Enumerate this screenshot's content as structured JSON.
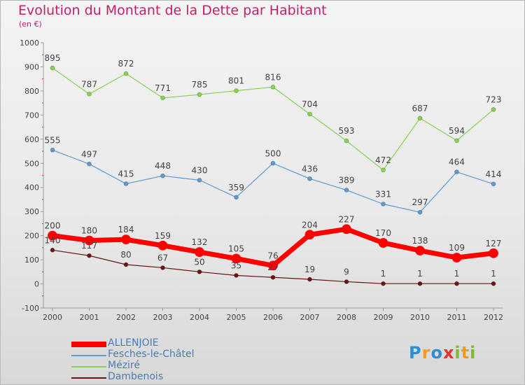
{
  "title": "Evolution du Montant de la Dette par Habitant",
  "unit": "(en €)",
  "logo_text": "Proxiti",
  "chart_data": {
    "type": "line",
    "title": "Evolution du Montant de la Dette par Habitant",
    "subtitle": "(en €)",
    "categories": [
      "2000",
      "2001",
      "2002",
      "2003",
      "2004",
      "2005",
      "2006",
      "2007",
      "2008",
      "2009",
      "2010",
      "2011",
      "2012"
    ],
    "ylim": [
      -100,
      1000
    ],
    "yticks": [
      "-100",
      "0",
      "100",
      "200",
      "300",
      "400",
      "500",
      "600",
      "700",
      "800",
      "900",
      "1000"
    ],
    "grid": false,
    "legend_position": "bottom-left",
    "series": [
      {
        "name": "ALLENJOIE",
        "color": "#ff0000",
        "emphasis": "thick",
        "values": [
          200,
          180,
          184,
          159,
          132,
          105,
          76,
          204,
          227,
          170,
          138,
          109,
          127
        ]
      },
      {
        "name": "Fesches-le-Châtel",
        "color": "#5f9ad2",
        "emphasis": "normal",
        "values": [
          555,
          497,
          415,
          448,
          430,
          359,
          500,
          436,
          389,
          331,
          297,
          464,
          414
        ]
      },
      {
        "name": "Méziré",
        "color": "#86d24e",
        "emphasis": "normal",
        "values": [
          895,
          787,
          872,
          771,
          785,
          801,
          816,
          704,
          593,
          472,
          687,
          594,
          723
        ]
      },
      {
        "name": "Dambenois",
        "color": "#6b1414",
        "emphasis": "normal",
        "values": [
          140,
          117,
          80,
          67,
          50,
          35,
          27,
          19,
          9,
          1,
          1,
          1,
          1
        ]
      }
    ]
  }
}
